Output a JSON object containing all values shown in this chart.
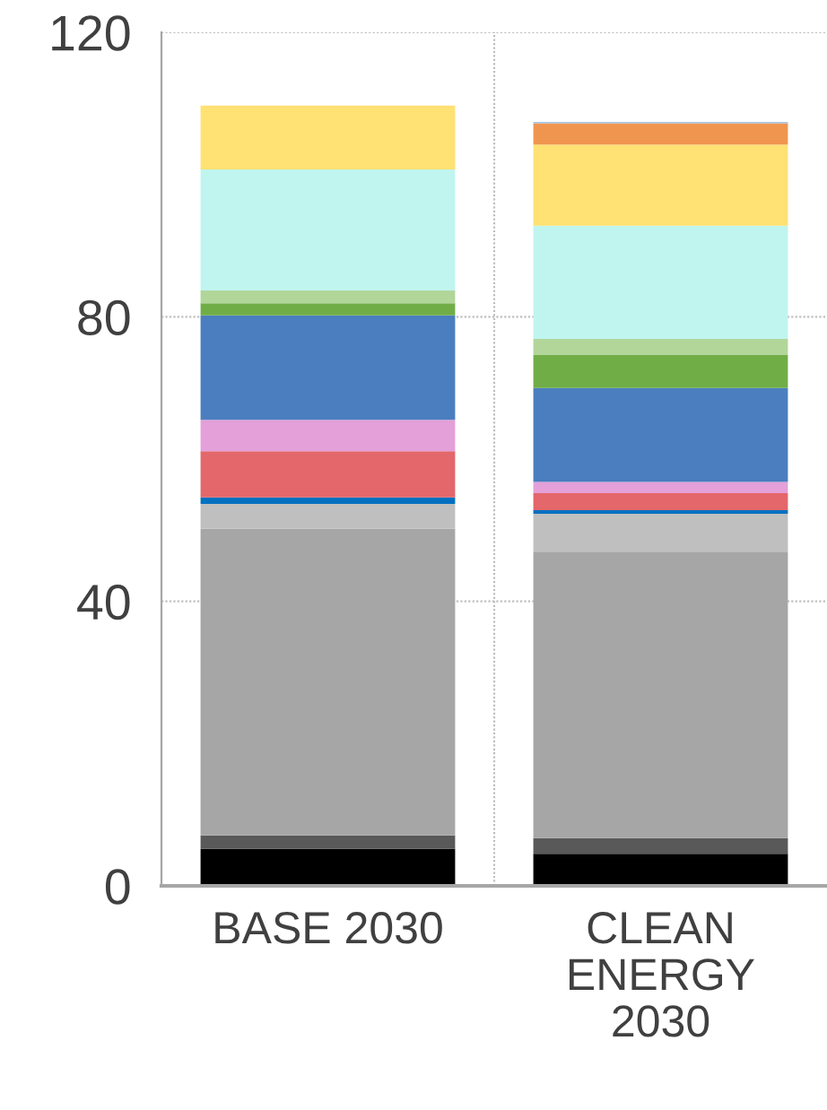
{
  "chart_data": {
    "type": "bar",
    "stacked": true,
    "categories": [
      "BASE 2030",
      "CLEAN ENERGY 2030"
    ],
    "series": [
      {
        "color": "#000000",
        "values": [
          5.2,
          4.5
        ]
      },
      {
        "color": "#595959",
        "values": [
          1.9,
          2.2
        ]
      },
      {
        "color": "#a6a6a6",
        "values": [
          43.1,
          40.3
        ]
      },
      {
        "color": "#bfbfbf",
        "values": [
          3.5,
          5.3
        ]
      },
      {
        "color": "#0070c0",
        "values": [
          0.9,
          0.5
        ]
      },
      {
        "color": "#e3676b",
        "values": [
          6.5,
          2.4
        ]
      },
      {
        "color": "#e4a0d8",
        "values": [
          4.4,
          1.6
        ]
      },
      {
        "color": "#4a7ebf",
        "values": [
          14.7,
          13.2
        ]
      },
      {
        "color": "#70ad47",
        "values": [
          1.7,
          4.7
        ]
      },
      {
        "color": "#b2d59a",
        "values": [
          1.8,
          2.2
        ]
      },
      {
        "color": "#c0f5ef",
        "values": [
          17.0,
          15.9
        ]
      },
      {
        "color": "#ffe174",
        "values": [
          9.0,
          11.4
        ]
      },
      {
        "color": "#f09550",
        "values": [
          0,
          3.0
        ]
      },
      {
        "color": "#9dc3e6",
        "values": [
          0,
          0.2
        ]
      }
    ],
    "ylim": [
      0,
      120
    ],
    "yticks": [
      0,
      40,
      80,
      120
    ],
    "grid": true
  }
}
